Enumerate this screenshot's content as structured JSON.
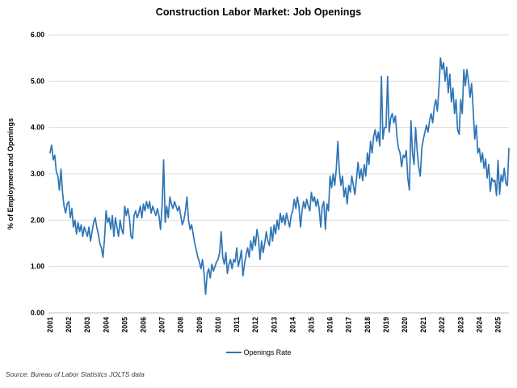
{
  "title": "Construction Labor Market: Job Openings",
  "legend": {
    "series_label": "Openings Rate"
  },
  "source_note": "Source: Bureau of Labor Statistics JOLTS data",
  "colors": {
    "line": "#2E75B6",
    "gridline": "#D9D9D9",
    "axis_line": "#BFBFBF",
    "tick_text": "#000000",
    "source_text": "#3a3a3a"
  },
  "chart_data": {
    "type": "line",
    "title": "Construction Labor Market: Job Openings",
    "xlabel": "",
    "ylabel": "% of Employment and Openings",
    "ylim": [
      0,
      6
    ],
    "ytick_step": 1,
    "ytick_labels": [
      "0.00",
      "1.00",
      "2.00",
      "3.00",
      "4.00",
      "5.00",
      "6.00"
    ],
    "xtick_labels": [
      "2001",
      "2002",
      "2003",
      "2004",
      "2005",
      "2006",
      "2007",
      "2008",
      "2009",
      "2010",
      "2011",
      "2012",
      "2013",
      "2014",
      "2015",
      "2016",
      "2017",
      "2018",
      "2019",
      "2020",
      "2021",
      "2022",
      "2023",
      "2024",
      "2025"
    ],
    "grid": "horizontal",
    "legend_position": "bottom",
    "series": [
      {
        "name": "Openings Rate",
        "color": "#2E75B6",
        "start": "2001-01",
        "frequency": "monthly",
        "values": [
          3.45,
          3.62,
          3.3,
          3.4,
          3.05,
          2.95,
          2.65,
          3.1,
          2.6,
          2.3,
          2.15,
          2.35,
          2.4,
          2.05,
          2.25,
          1.85,
          2.0,
          1.7,
          1.95,
          1.75,
          1.9,
          1.65,
          1.85,
          1.75,
          1.65,
          1.85,
          1.55,
          1.75,
          1.95,
          2.05,
          1.85,
          1.7,
          1.5,
          1.4,
          1.2,
          1.6,
          2.2,
          1.95,
          2.05,
          1.8,
          2.1,
          1.65,
          2.05,
          1.85,
          1.65,
          2.0,
          1.8,
          1.7,
          2.3,
          2.1,
          2.25,
          2.05,
          1.65,
          1.6,
          2.1,
          2.2,
          2.05,
          2.15,
          2.3,
          2.05,
          2.35,
          2.2,
          2.4,
          2.25,
          2.4,
          2.15,
          2.3,
          2.2,
          2.1,
          2.25,
          2.1,
          1.8,
          2.3,
          3.3,
          1.95,
          2.3,
          2.05,
          2.5,
          2.35,
          2.25,
          2.4,
          2.3,
          2.2,
          2.3,
          2.1,
          1.9,
          2.0,
          2.2,
          2.5,
          2.0,
          1.8,
          1.9,
          1.7,
          1.5,
          1.35,
          1.2,
          1.1,
          0.95,
          1.15,
          0.85,
          0.4,
          0.85,
          0.95,
          0.75,
          1.05,
          0.9,
          1.0,
          1.1,
          1.15,
          1.3,
          1.75,
          1.2,
          1.05,
          1.3,
          0.85,
          1.05,
          1.15,
          0.95,
          1.15,
          1.1,
          1.4,
          1.0,
          1.15,
          1.35,
          0.8,
          1.05,
          1.25,
          1.4,
          1.2,
          1.55,
          1.35,
          1.65,
          1.45,
          1.8,
          1.6,
          1.15,
          1.55,
          1.3,
          1.5,
          1.75,
          1.55,
          1.45,
          1.85,
          1.55,
          1.9,
          1.7,
          2.0,
          1.8,
          2.15,
          1.95,
          2.1,
          1.9,
          2.15,
          2.0,
          1.85,
          2.1,
          2.2,
          2.45,
          2.25,
          2.5,
          2.3,
          1.85,
          2.2,
          2.4,
          2.25,
          2.45,
          2.3,
          2.2,
          2.6,
          2.4,
          2.5,
          2.3,
          2.45,
          2.25,
          1.85,
          2.3,
          2.4,
          1.8,
          2.35,
          2.2,
          2.95,
          2.7,
          3.0,
          2.75,
          3.1,
          3.7,
          3.05,
          2.75,
          2.95,
          2.5,
          2.7,
          2.35,
          2.75,
          2.6,
          2.95,
          2.75,
          2.55,
          2.9,
          3.25,
          2.9,
          3.1,
          2.85,
          3.2,
          2.95,
          3.45,
          3.2,
          3.7,
          3.45,
          3.8,
          3.95,
          3.7,
          3.9,
          3.6,
          5.1,
          3.75,
          4.0,
          4.0,
          5.1,
          3.9,
          4.2,
          4.3,
          4.1,
          4.25,
          3.8,
          3.55,
          3.45,
          3.15,
          3.4,
          3.35,
          3.5,
          2.9,
          2.65,
          4.15,
          3.45,
          3.2,
          4.0,
          3.5,
          3.15,
          2.95,
          3.55,
          3.75,
          3.9,
          4.05,
          3.9,
          4.15,
          4.3,
          4.1,
          4.45,
          4.6,
          4.35,
          4.85,
          5.5,
          5.25,
          5.4,
          5.0,
          5.3,
          4.75,
          5.15,
          4.55,
          4.85,
          4.3,
          4.6,
          3.95,
          3.85,
          4.6,
          4.3,
          5.25,
          4.9,
          5.25,
          5.0,
          4.65,
          4.95,
          4.4,
          3.75,
          4.05,
          3.45,
          3.55,
          3.25,
          3.45,
          3.12,
          3.32,
          2.91,
          3.2,
          2.62,
          2.91,
          2.83,
          2.86,
          2.53,
          3.29,
          2.56,
          2.97,
          2.83,
          3.12,
          2.8,
          2.74,
          3.55
        ]
      }
    ]
  }
}
